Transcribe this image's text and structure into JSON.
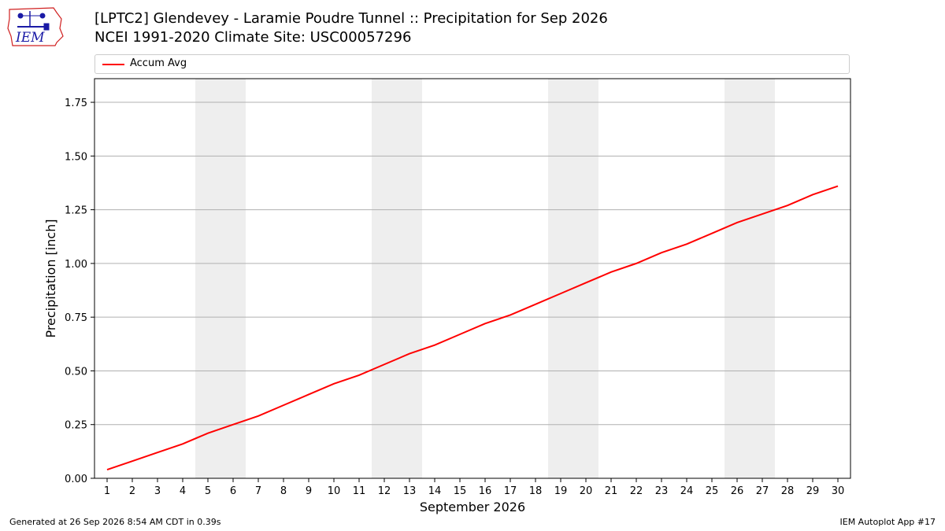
{
  "logo": {
    "text": "IEM",
    "alt": "IEM logo"
  },
  "title": "[LPTC2] Glendevey - Laramie Poudre Tunnel :: Precipitation for Sep 2026",
  "subtitle": "NCEI 1991-2020 Climate Site: USC00057296",
  "footer": {
    "generated": "Generated at 26 Sep 2026 8:54 AM CDT in 0.39s",
    "app": "IEM Autoplot App #17"
  },
  "colors": {
    "line": "#ff0000",
    "weekend": "#eeeeee",
    "grid": "#b0b0b0",
    "logo_blue": "#1a1aa6",
    "logo_red": "#d02020"
  },
  "chart_data": {
    "type": "line",
    "xlabel": "September 2026",
    "ylabel": "Precipitation [inch]",
    "xlim": [
      0.5,
      30.5
    ],
    "ylim": [
      0,
      1.86
    ],
    "grid": "horizontal",
    "legend_position": "top",
    "x": [
      1,
      2,
      3,
      4,
      5,
      6,
      7,
      8,
      9,
      10,
      11,
      12,
      13,
      14,
      15,
      16,
      17,
      18,
      19,
      20,
      21,
      22,
      23,
      24,
      25,
      26,
      27,
      28,
      29,
      30
    ],
    "x_tick_labels": [
      "1",
      "2",
      "3",
      "4",
      "5",
      "6",
      "7",
      "8",
      "9",
      "10",
      "11",
      "12",
      "13",
      "14",
      "15",
      "16",
      "17",
      "18",
      "19",
      "20",
      "21",
      "22",
      "23",
      "24",
      "25",
      "26",
      "27",
      "28",
      "29",
      "30"
    ],
    "y_ticks": [
      0,
      0.25,
      0.5,
      0.75,
      1.0,
      1.25,
      1.5,
      1.75
    ],
    "y_tick_labels": [
      "0.00",
      "0.25",
      "0.50",
      "0.75",
      "1.00",
      "1.25",
      "1.50",
      "1.75"
    ],
    "weekend_spans": [
      [
        5,
        6
      ],
      [
        12,
        13
      ],
      [
        19,
        20
      ],
      [
        26,
        27
      ]
    ],
    "series": [
      {
        "name": "Accum Avg",
        "color": "#ff0000",
        "values": [
          0.04,
          0.08,
          0.12,
          0.16,
          0.21,
          0.25,
          0.29,
          0.34,
          0.39,
          0.44,
          0.48,
          0.53,
          0.58,
          0.62,
          0.67,
          0.72,
          0.76,
          0.81,
          0.86,
          0.91,
          0.96,
          1.0,
          1.05,
          1.09,
          1.14,
          1.19,
          1.23,
          1.27,
          1.32,
          1.36
        ]
      }
    ]
  }
}
